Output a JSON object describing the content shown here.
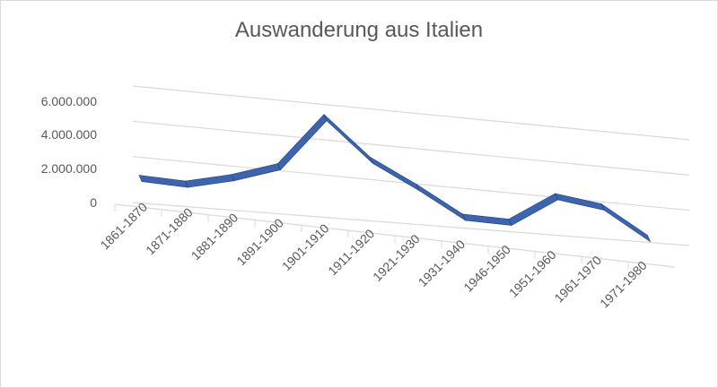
{
  "chart_data": {
    "type": "line",
    "style": "3d-line",
    "title": "Auswanderung aus Italien",
    "categories": [
      "1861-1870",
      "1871-1880",
      "1881-1890",
      "1891-1900",
      "1901-1910",
      "1911-1920",
      "1921-1930",
      "1931-1940",
      "1946-1950",
      "1951-1960",
      "1961-1970",
      "1971-1980"
    ],
    "values": [
      1210000,
      1180000,
      1880000,
      2830000,
      6030000,
      3830000,
      2550000,
      1110000,
      1130000,
      2940000,
      2650000,
      1110000
    ],
    "yticks": [
      "0",
      "2.000.000",
      "4.000.000",
      "6.000.000"
    ],
    "ylim": [
      0,
      6000000
    ],
    "grid": true,
    "legend": "none",
    "colors": {
      "line": "#3b64b3",
      "line_dark": "#1f3e7a",
      "grid": "#d9d9d9",
      "text": "#595959"
    }
  }
}
